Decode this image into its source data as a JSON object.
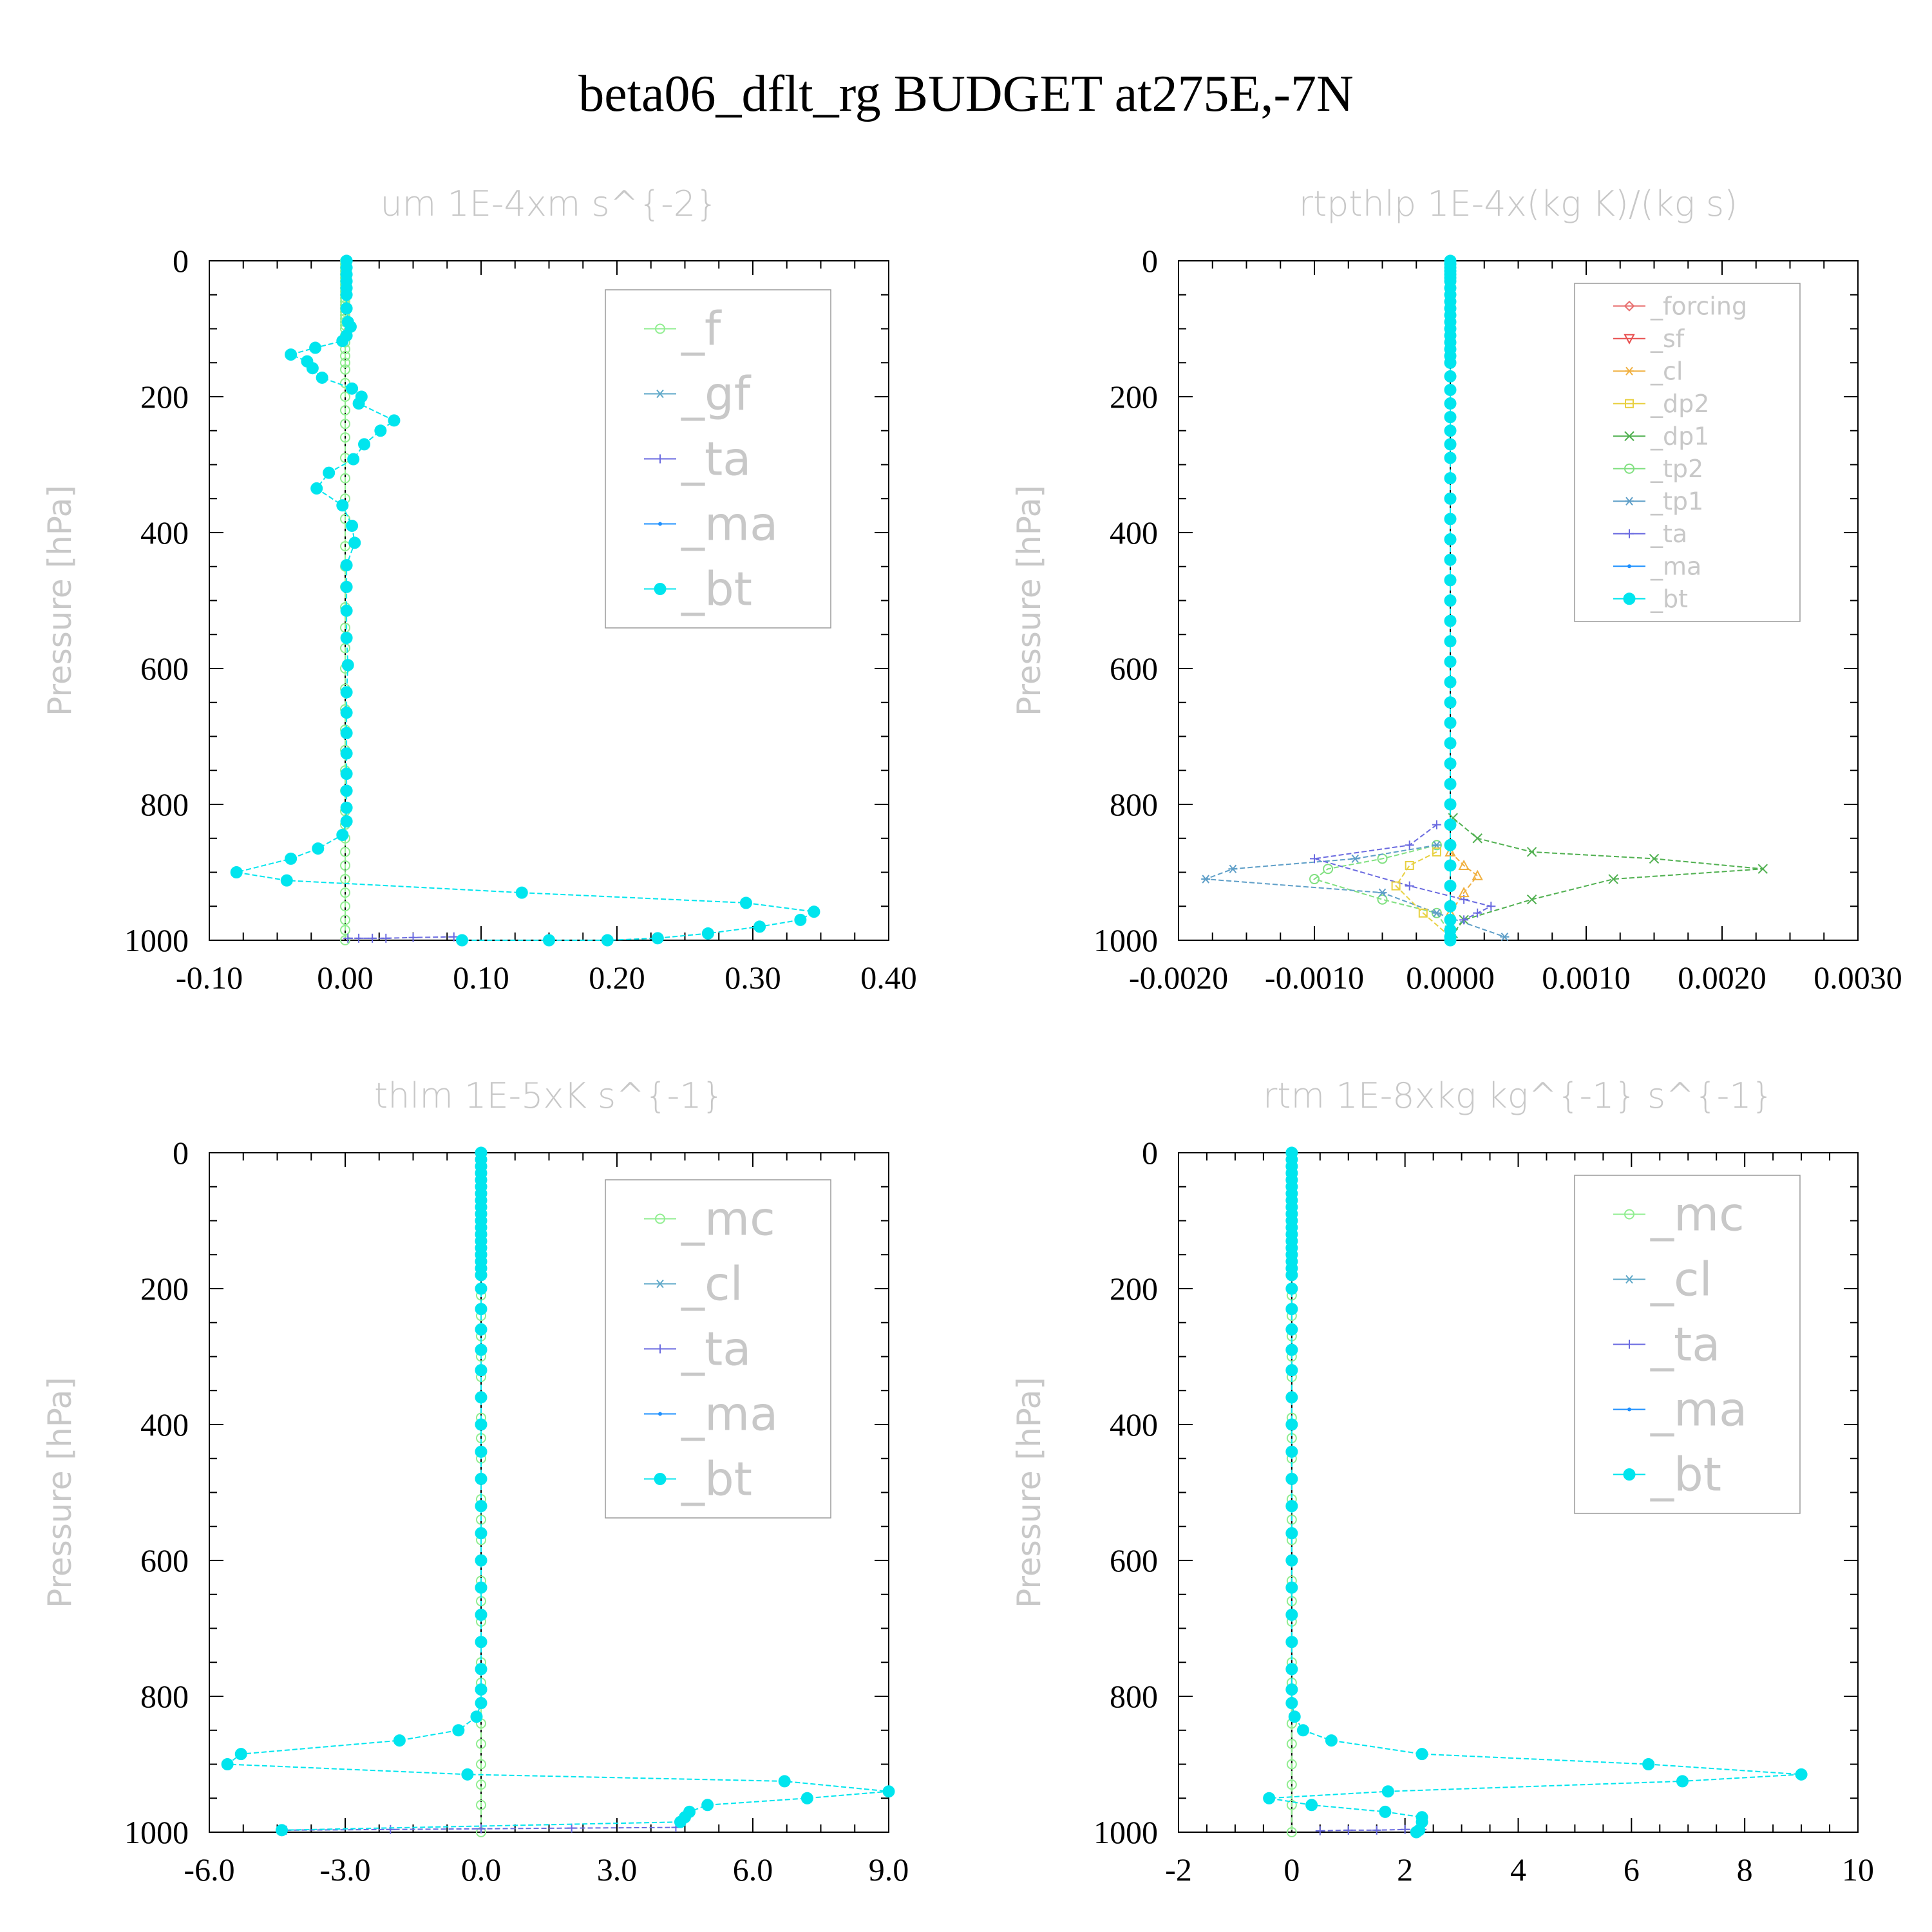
{
  "title": "beta06_dflt_rg  BUDGET at275E,-7N",
  "chart_data": [
    {
      "type": "line",
      "title": "um  1E-4xm s^{-2}",
      "ylabel": "Pressure [hPa]",
      "xlim": [
        -0.1,
        0.4
      ],
      "ylim": [
        1000,
        0
      ],
      "xticks": [
        "-0.10",
        "0.00",
        "0.10",
        "0.20",
        "0.30",
        "0.40"
      ],
      "xtick_values": [
        -0.1,
        0.0,
        0.1,
        0.2,
        0.3,
        0.4
      ],
      "yticks": [
        "0",
        "200",
        "400",
        "600",
        "800",
        "1000"
      ],
      "legend": [
        "_f",
        "_gf",
        "_ta",
        "_ma",
        "_bt"
      ],
      "legend_font": 72,
      "colors": {
        "_f": "#90ee90",
        "_gf": "#5fa8c8",
        "_ta": "#6a6ae0",
        "_ma": "#1e90ff",
        "_bt": "#00e5ee"
      },
      "series": [
        {
          "name": "_f",
          "marker": "circle-open",
          "x": [
            0,
            0,
            0,
            0,
            0,
            0,
            0,
            0,
            0,
            0,
            0,
            0,
            0,
            0,
            0,
            0,
            0,
            0,
            0,
            0,
            0,
            0,
            0,
            0,
            0,
            0,
            0,
            0,
            0,
            0,
            0,
            0,
            0,
            0,
            0,
            0,
            0,
            0,
            0,
            0,
            0,
            0,
            0,
            0,
            0,
            0,
            0,
            0,
            0,
            0,
            0,
            0,
            0,
            0,
            0,
            0,
            0,
            0,
            0,
            0
          ],
          "y": [
            0,
            5,
            10,
            15,
            20,
            25,
            30,
            35,
            40,
            45,
            50,
            55,
            60,
            65,
            70,
            75,
            80,
            85,
            90,
            95,
            100,
            110,
            120,
            130,
            140,
            150,
            160,
            180,
            200,
            220,
            240,
            260,
            290,
            320,
            350,
            380,
            420,
            450,
            480,
            510,
            540,
            570,
            600,
            630,
            660,
            690,
            720,
            750,
            780,
            810,
            830,
            850,
            870,
            890,
            910,
            930,
            950,
            970,
            985,
            1000
          ]
        },
        {
          "name": "_ta",
          "marker": "plus",
          "x": [
            0.002,
            0.01,
            0.02,
            0.03,
            0.05,
            0.08
          ],
          "y": [
            997,
            997,
            997,
            997,
            996,
            995
          ]
        },
        {
          "name": "_bt",
          "marker": "dot",
          "x": [
            0.001,
            0.001,
            0.001,
            0.001,
            0.001,
            0.001,
            0.001,
            0.002,
            0.004,
            0.001,
            -0.002,
            -0.022,
            -0.04,
            -0.028,
            -0.024,
            -0.017,
            0.005,
            0.012,
            0.01,
            0.036,
            0.026,
            0.014,
            0.006,
            -0.012,
            -0.021,
            -0.002,
            0.005,
            0.007,
            0.001,
            0.001,
            0.001,
            0.001,
            0.002,
            0.001,
            0.001,
            0.001,
            0.001,
            0.001,
            0.001,
            0.001,
            0.001,
            -0.002,
            -0.02,
            -0.04,
            -0.08,
            -0.043,
            0.13,
            0.295,
            0.345,
            0.335,
            0.305,
            0.267,
            0.23,
            0.193,
            0.15,
            0.086
          ],
          "y": [
            0,
            10,
            20,
            30,
            40,
            50,
            70,
            90,
            97,
            110,
            118,
            128,
            138,
            148,
            158,
            172,
            188,
            200,
            210,
            235,
            250,
            270,
            292,
            312,
            335,
            360,
            390,
            415,
            448,
            480,
            515,
            555,
            595,
            635,
            665,
            695,
            725,
            755,
            780,
            805,
            825,
            845,
            865,
            880,
            900,
            912,
            930,
            945,
            958,
            970,
            980,
            990,
            997,
            1000,
            1000,
            1000
          ]
        }
      ]
    },
    {
      "type": "line",
      "title": "rtpthlp  1E-4x(kg K)/(kg s)",
      "ylabel": "Pressure [hPa]",
      "xlim": [
        -0.002,
        0.003
      ],
      "ylim": [
        1000,
        0
      ],
      "xticks": [
        "-0.0020",
        "-0.0010",
        "0.0000",
        "0.0010",
        "0.0020",
        "0.0030"
      ],
      "xtick_values": [
        -0.002,
        -0.001,
        0.0,
        0.001,
        0.002,
        0.003
      ],
      "yticks": [
        "0",
        "200",
        "400",
        "600",
        "800",
        "1000"
      ],
      "legend": [
        "_forcing",
        "_sf",
        "_cl",
        "_dp2",
        "_dp1",
        "_tp2",
        "_tp1",
        "_ta",
        "_ma",
        "_bt"
      ],
      "legend_font": 38,
      "colors": {
        "_forcing": "#e87070",
        "_sf": "#e85050",
        "_cl": "#f0b040",
        "_dp2": "#e8d040",
        "_dp1": "#50b050",
        "_tp2": "#80e080",
        "_tp1": "#5f9fc8",
        "_ta": "#6a6ae0",
        "_ma": "#1e90ff",
        "_bt": "#00e5ee"
      },
      "series": [
        {
          "name": "_dp1",
          "marker": "x",
          "x": [
            2e-05,
            0.0002,
            0.0006,
            0.0015,
            0.0023,
            0.0012,
            0.0006,
            0.0001,
            2e-05
          ],
          "y": [
            820,
            850,
            870,
            880,
            895,
            910,
            940,
            970,
            990
          ]
        },
        {
          "name": "_tp2",
          "marker": "circle-open",
          "x": [
            -0.0001,
            -0.0005,
            -0.0009,
            -0.001,
            -0.0005,
            -0.0001,
            0.0
          ],
          "y": [
            860,
            880,
            895,
            910,
            940,
            960,
            990
          ]
        },
        {
          "name": "_tp1",
          "marker": "asterisk",
          "x": [
            -0.0001,
            -0.0007,
            -0.0016,
            -0.0018,
            -0.0005,
            -0.0001,
            0.0004
          ],
          "y": [
            860,
            880,
            895,
            910,
            930,
            960,
            995
          ]
        },
        {
          "name": "_ta",
          "marker": "plus",
          "x": [
            -0.0001,
            -0.0003,
            -0.001,
            -0.0003,
            0.0001,
            0.0003,
            0.0002,
            0.0001
          ],
          "y": [
            830,
            860,
            880,
            920,
            940,
            950,
            960,
            970
          ]
        },
        {
          "name": "_cl",
          "marker": "triangle",
          "x": [
            0.0,
            0.0001,
            0.0002,
            0.0001,
            0.0
          ],
          "y": [
            870,
            890,
            905,
            930,
            960
          ]
        },
        {
          "name": "_dp2",
          "marker": "square",
          "x": [
            -0.0001,
            -0.0003,
            -0.0004,
            -0.0002,
            0.0
          ],
          "y": [
            870,
            890,
            920,
            960,
            995
          ]
        },
        {
          "name": "_bt",
          "marker": "dot",
          "x": [
            0,
            0,
            0,
            0,
            0,
            0,
            0,
            0,
            0,
            0,
            0,
            0,
            0,
            0,
            0,
            0,
            0,
            0,
            0,
            0,
            0,
            0,
            0,
            0,
            0,
            0,
            0,
            0,
            0,
            0,
            0,
            0,
            0,
            0,
            0,
            0,
            0,
            0,
            0,
            0,
            0,
            0,
            0,
            0,
            0,
            0,
            0,
            0,
            0,
            0,
            0,
            0
          ],
          "y": [
            0,
            5,
            10,
            15,
            20,
            25,
            30,
            40,
            50,
            60,
            70,
            80,
            90,
            100,
            110,
            120,
            130,
            140,
            150,
            170,
            190,
            210,
            230,
            250,
            270,
            290,
            320,
            350,
            380,
            410,
            440,
            470,
            500,
            530,
            560,
            590,
            620,
            650,
            680,
            710,
            740,
            770,
            800,
            830,
            860,
            890,
            920,
            950,
            970,
            985,
            995,
            1000
          ]
        }
      ]
    },
    {
      "type": "line",
      "title": "thlm  1E-5xK s^{-1}",
      "ylabel": "Pressure [hPa]",
      "xlim": [
        -6.0,
        9.0
      ],
      "ylim": [
        1000,
        0
      ],
      "xticks": [
        "-6.0",
        "-3.0",
        "0.0",
        "3.0",
        "6.0",
        "9.0"
      ],
      "xtick_values": [
        -6.0,
        -3.0,
        0.0,
        3.0,
        6.0,
        9.0
      ],
      "yticks": [
        "0",
        "200",
        "400",
        "600",
        "800",
        "1000"
      ],
      "legend": [
        "_mc",
        "_cl",
        "_ta",
        "_ma",
        "_bt"
      ],
      "legend_font": 72,
      "colors": {
        "_mc": "#90ee90",
        "_cl": "#5fa8c8",
        "_ta": "#6a6ae0",
        "_ma": "#1e90ff",
        "_bt": "#00e5ee"
      },
      "series": [
        {
          "name": "_mc",
          "marker": "circle-open",
          "x": [
            0,
            0,
            0,
            0,
            0,
            0,
            0,
            0,
            0,
            0,
            0,
            0,
            0,
            0,
            0,
            0,
            0,
            0,
            0,
            0,
            0,
            0,
            0,
            0,
            0,
            0,
            0,
            0,
            0,
            0,
            0,
            0,
            0,
            0
          ],
          "y": [
            0,
            30,
            60,
            90,
            120,
            150,
            180,
            210,
            240,
            270,
            300,
            330,
            360,
            390,
            420,
            450,
            480,
            510,
            540,
            570,
            600,
            630,
            660,
            690,
            720,
            750,
            780,
            810,
            840,
            870,
            900,
            930,
            960,
            1000
          ]
        },
        {
          "name": "_ta",
          "marker": "plus",
          "x": [
            -4.3,
            -2.0,
            0.0,
            2.0,
            4.3
          ],
          "y": [
            997,
            996,
            995,
            994,
            993
          ]
        },
        {
          "name": "_bt",
          "marker": "dot",
          "x": [
            0,
            0,
            0,
            0,
            0,
            0,
            0,
            0,
            0,
            0,
            0,
            0,
            0,
            0,
            0,
            0,
            0,
            0,
            0,
            0,
            0,
            0,
            0,
            0,
            0,
            0,
            0,
            0,
            0,
            0,
            0,
            0,
            0,
            0,
            0,
            0,
            0,
            -0.1,
            -0.5,
            -1.8,
            -5.3,
            -5.6,
            -0.3,
            6.7,
            9.0,
            7.2,
            5.0,
            4.6,
            4.5,
            4.4,
            -4.4
          ],
          "y": [
            0,
            10,
            20,
            30,
            40,
            50,
            60,
            70,
            80,
            90,
            100,
            110,
            120,
            130,
            140,
            150,
            160,
            170,
            180,
            200,
            230,
            260,
            290,
            320,
            360,
            400,
            440,
            480,
            520,
            560,
            600,
            640,
            680,
            720,
            760,
            790,
            810,
            830,
            850,
            865,
            885,
            900,
            915,
            925,
            940,
            950,
            960,
            970,
            978,
            985,
            997
          ]
        }
      ]
    },
    {
      "type": "line",
      "title": "rtm  1E-8xkg kg^{-1} s^{-1}",
      "ylabel": "Pressure [hPa]",
      "xlim": [
        -2,
        10
      ],
      "ylim": [
        1000,
        0
      ],
      "xticks": [
        "-2",
        "0",
        "2",
        "4",
        "6",
        "8",
        "10"
      ],
      "xtick_values": [
        -2,
        0,
        2,
        4,
        6,
        8,
        10
      ],
      "yticks": [
        "0",
        "200",
        "400",
        "600",
        "800",
        "1000"
      ],
      "legend": [
        "_mc",
        "_cl",
        "_ta",
        "_ma",
        "_bt"
      ],
      "legend_font": 72,
      "colors": {
        "_mc": "#90ee90",
        "_cl": "#5fa8c8",
        "_ta": "#6a6ae0",
        "_ma": "#1e90ff",
        "_bt": "#00e5ee"
      },
      "series": [
        {
          "name": "_mc",
          "marker": "circle-open",
          "x": [
            0,
            0,
            0,
            0,
            0,
            0,
            0,
            0,
            0,
            0,
            0,
            0,
            0,
            0,
            0,
            0,
            0,
            0,
            0,
            0,
            0,
            0,
            0,
            0,
            0,
            0,
            0,
            0,
            0,
            0,
            0,
            0,
            0,
            0
          ],
          "y": [
            0,
            30,
            60,
            90,
            120,
            150,
            180,
            210,
            240,
            270,
            300,
            330,
            360,
            390,
            420,
            450,
            480,
            510,
            540,
            570,
            600,
            630,
            660,
            690,
            720,
            750,
            780,
            810,
            840,
            870,
            900,
            930,
            960,
            1000
          ]
        },
        {
          "name": "_ta",
          "marker": "plus",
          "x": [
            0.5,
            1.0,
            1.5,
            2.0,
            2.3
          ],
          "y": [
            998,
            997,
            997,
            996,
            996
          ]
        },
        {
          "name": "_bt",
          "marker": "dot",
          "x": [
            0,
            0,
            0,
            0,
            0,
            0,
            0,
            0,
            0,
            0,
            0,
            0,
            0,
            0,
            0,
            0,
            0,
            0,
            0,
            0,
            0,
            0,
            0,
            0,
            0,
            0,
            0,
            0,
            0,
            0,
            0,
            0,
            0,
            0,
            0,
            0,
            0,
            0.05,
            0.2,
            0.7,
            2.3,
            6.3,
            9.0,
            6.9,
            1.7,
            -0.4,
            0.35,
            1.65,
            2.3,
            2.3,
            2.25,
            2.2
          ],
          "y": [
            0,
            10,
            20,
            30,
            40,
            50,
            60,
            70,
            80,
            90,
            100,
            110,
            120,
            130,
            140,
            150,
            160,
            170,
            180,
            200,
            230,
            260,
            290,
            320,
            360,
            400,
            440,
            480,
            520,
            560,
            600,
            640,
            680,
            720,
            760,
            790,
            810,
            830,
            850,
            865,
            885,
            900,
            915,
            925,
            940,
            950,
            960,
            970,
            978,
            985,
            997,
            1000
          ]
        }
      ]
    }
  ]
}
